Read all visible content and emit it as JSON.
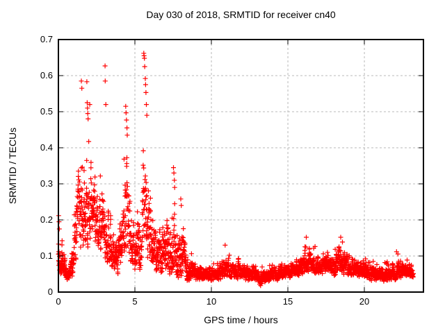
{
  "figure": {
    "background": "#ffffff"
  },
  "chart_data": {
    "type": "scatter",
    "title": "Day 030 of 2018, SRMTID for receiver cn40",
    "xlabel": "GPS time / hours",
    "ylabel": "SRMTID / TECUs",
    "xlim": [
      0,
      23.86
    ],
    "ylim": [
      0,
      0.7
    ],
    "xticks": [
      {
        "v": 0,
        "label": "0"
      },
      {
        "v": 5,
        "label": "5"
      },
      {
        "v": 10,
        "label": "10"
      },
      {
        "v": 15,
        "label": "15"
      },
      {
        "v": 20,
        "label": "20"
      }
    ],
    "yticks": [
      {
        "v": 0.0,
        "label": "0"
      },
      {
        "v": 0.1,
        "label": "0.1"
      },
      {
        "v": 0.2,
        "label": "0.2"
      },
      {
        "v": 0.3,
        "label": "0.3"
      },
      {
        "v": 0.4,
        "label": "0.4"
      },
      {
        "v": 0.5,
        "label": "0.5"
      },
      {
        "v": 0.6,
        "label": "0.6"
      },
      {
        "v": 0.7,
        "label": "0.7"
      }
    ],
    "grid": true,
    "legend": false,
    "marker": "plus",
    "marker_size": 7,
    "point_color": "#ff0000",
    "grid_color": "#b8b8b8",
    "border_color": "#000000",
    "seed": 42,
    "series": [
      {
        "name": "SRMTID",
        "sample_rate_per_hour": 120,
        "t_start": 0,
        "t_end": 23.2,
        "envelope": [
          [
            0.0,
            0.04,
            0.21
          ],
          [
            0.3,
            0.04,
            0.16
          ],
          [
            0.55,
            0.025,
            0.09
          ],
          [
            0.8,
            0.03,
            0.1
          ],
          [
            1.0,
            0.04,
            0.22
          ],
          [
            1.2,
            0.06,
            0.38
          ],
          [
            1.5,
            0.09,
            0.47
          ],
          [
            1.8,
            0.11,
            0.5
          ],
          [
            2.1,
            0.13,
            0.4
          ],
          [
            2.4,
            0.12,
            0.37
          ],
          [
            2.7,
            0.1,
            0.33
          ],
          [
            3.0,
            0.09,
            0.38
          ],
          [
            3.3,
            0.07,
            0.28
          ],
          [
            3.6,
            0.05,
            0.22
          ],
          [
            3.9,
            0.04,
            0.18
          ],
          [
            4.2,
            0.06,
            0.35
          ],
          [
            4.5,
            0.08,
            0.45
          ],
          [
            4.8,
            0.06,
            0.3
          ],
          [
            5.1,
            0.05,
            0.22
          ],
          [
            5.4,
            0.06,
            0.32
          ],
          [
            5.6,
            0.08,
            0.55
          ],
          [
            5.8,
            0.07,
            0.45
          ],
          [
            6.1,
            0.06,
            0.32
          ],
          [
            6.4,
            0.05,
            0.25
          ],
          [
            6.8,
            0.04,
            0.22
          ],
          [
            7.2,
            0.04,
            0.26
          ],
          [
            7.5,
            0.04,
            0.33
          ],
          [
            7.8,
            0.035,
            0.22
          ],
          [
            8.1,
            0.035,
            0.24
          ],
          [
            8.4,
            0.03,
            0.13
          ],
          [
            8.8,
            0.03,
            0.1
          ],
          [
            9.5,
            0.03,
            0.085
          ],
          [
            10.2,
            0.03,
            0.08
          ],
          [
            10.9,
            0.035,
            0.12
          ],
          [
            11.3,
            0.035,
            0.1
          ],
          [
            11.8,
            0.03,
            0.11
          ],
          [
            12.3,
            0.03,
            0.09
          ],
          [
            12.8,
            0.025,
            0.1
          ],
          [
            13.2,
            0.015,
            0.07
          ],
          [
            13.7,
            0.025,
            0.08
          ],
          [
            14.2,
            0.03,
            0.09
          ],
          [
            14.8,
            0.035,
            0.095
          ],
          [
            15.4,
            0.04,
            0.105
          ],
          [
            15.9,
            0.04,
            0.13
          ],
          [
            16.3,
            0.05,
            0.15
          ],
          [
            16.7,
            0.05,
            0.13
          ],
          [
            17.1,
            0.045,
            0.12
          ],
          [
            17.5,
            0.05,
            0.14
          ],
          [
            17.9,
            0.04,
            0.13
          ],
          [
            18.4,
            0.05,
            0.15
          ],
          [
            18.9,
            0.045,
            0.13
          ],
          [
            19.4,
            0.04,
            0.11
          ],
          [
            19.9,
            0.035,
            0.1
          ],
          [
            20.5,
            0.03,
            0.09
          ],
          [
            21.1,
            0.03,
            0.085
          ],
          [
            21.7,
            0.025,
            0.09
          ],
          [
            22.1,
            0.035,
            0.115
          ],
          [
            22.6,
            0.035,
            0.1
          ],
          [
            23.2,
            0.04,
            0.09
          ]
        ],
        "outliers": [
          [
            0.02,
            0.212
          ],
          [
            0.04,
            0.195
          ],
          [
            0.06,
            0.175
          ],
          [
            1.5,
            0.585
          ],
          [
            1.53,
            0.565
          ],
          [
            1.86,
            0.583
          ],
          [
            1.88,
            0.525
          ],
          [
            1.9,
            0.51
          ],
          [
            1.92,
            0.495
          ],
          [
            1.94,
            0.48
          ],
          [
            2.05,
            0.52
          ],
          [
            3.05,
            0.627
          ],
          [
            3.06,
            0.585
          ],
          [
            3.1,
            0.52
          ],
          [
            4.4,
            0.515
          ],
          [
            4.42,
            0.497
          ],
          [
            4.45,
            0.477
          ],
          [
            4.48,
            0.455
          ],
          [
            4.5,
            0.435
          ],
          [
            5.58,
            0.662
          ],
          [
            5.6,
            0.655
          ],
          [
            5.62,
            0.648
          ],
          [
            5.64,
            0.625
          ],
          [
            5.68,
            0.592
          ],
          [
            5.7,
            0.575
          ],
          [
            5.72,
            0.553
          ],
          [
            5.75,
            0.52
          ],
          [
            5.78,
            0.49
          ],
          [
            7.52,
            0.345
          ],
          [
            7.55,
            0.33
          ],
          [
            7.58,
            0.31
          ],
          [
            7.6,
            0.29
          ],
          [
            8.0,
            0.258
          ],
          [
            8.03,
            0.24
          ],
          [
            10.9,
            0.13
          ],
          [
            16.2,
            0.152
          ],
          [
            18.45,
            0.152
          ],
          [
            22.1,
            0.112
          ]
        ]
      }
    ]
  }
}
